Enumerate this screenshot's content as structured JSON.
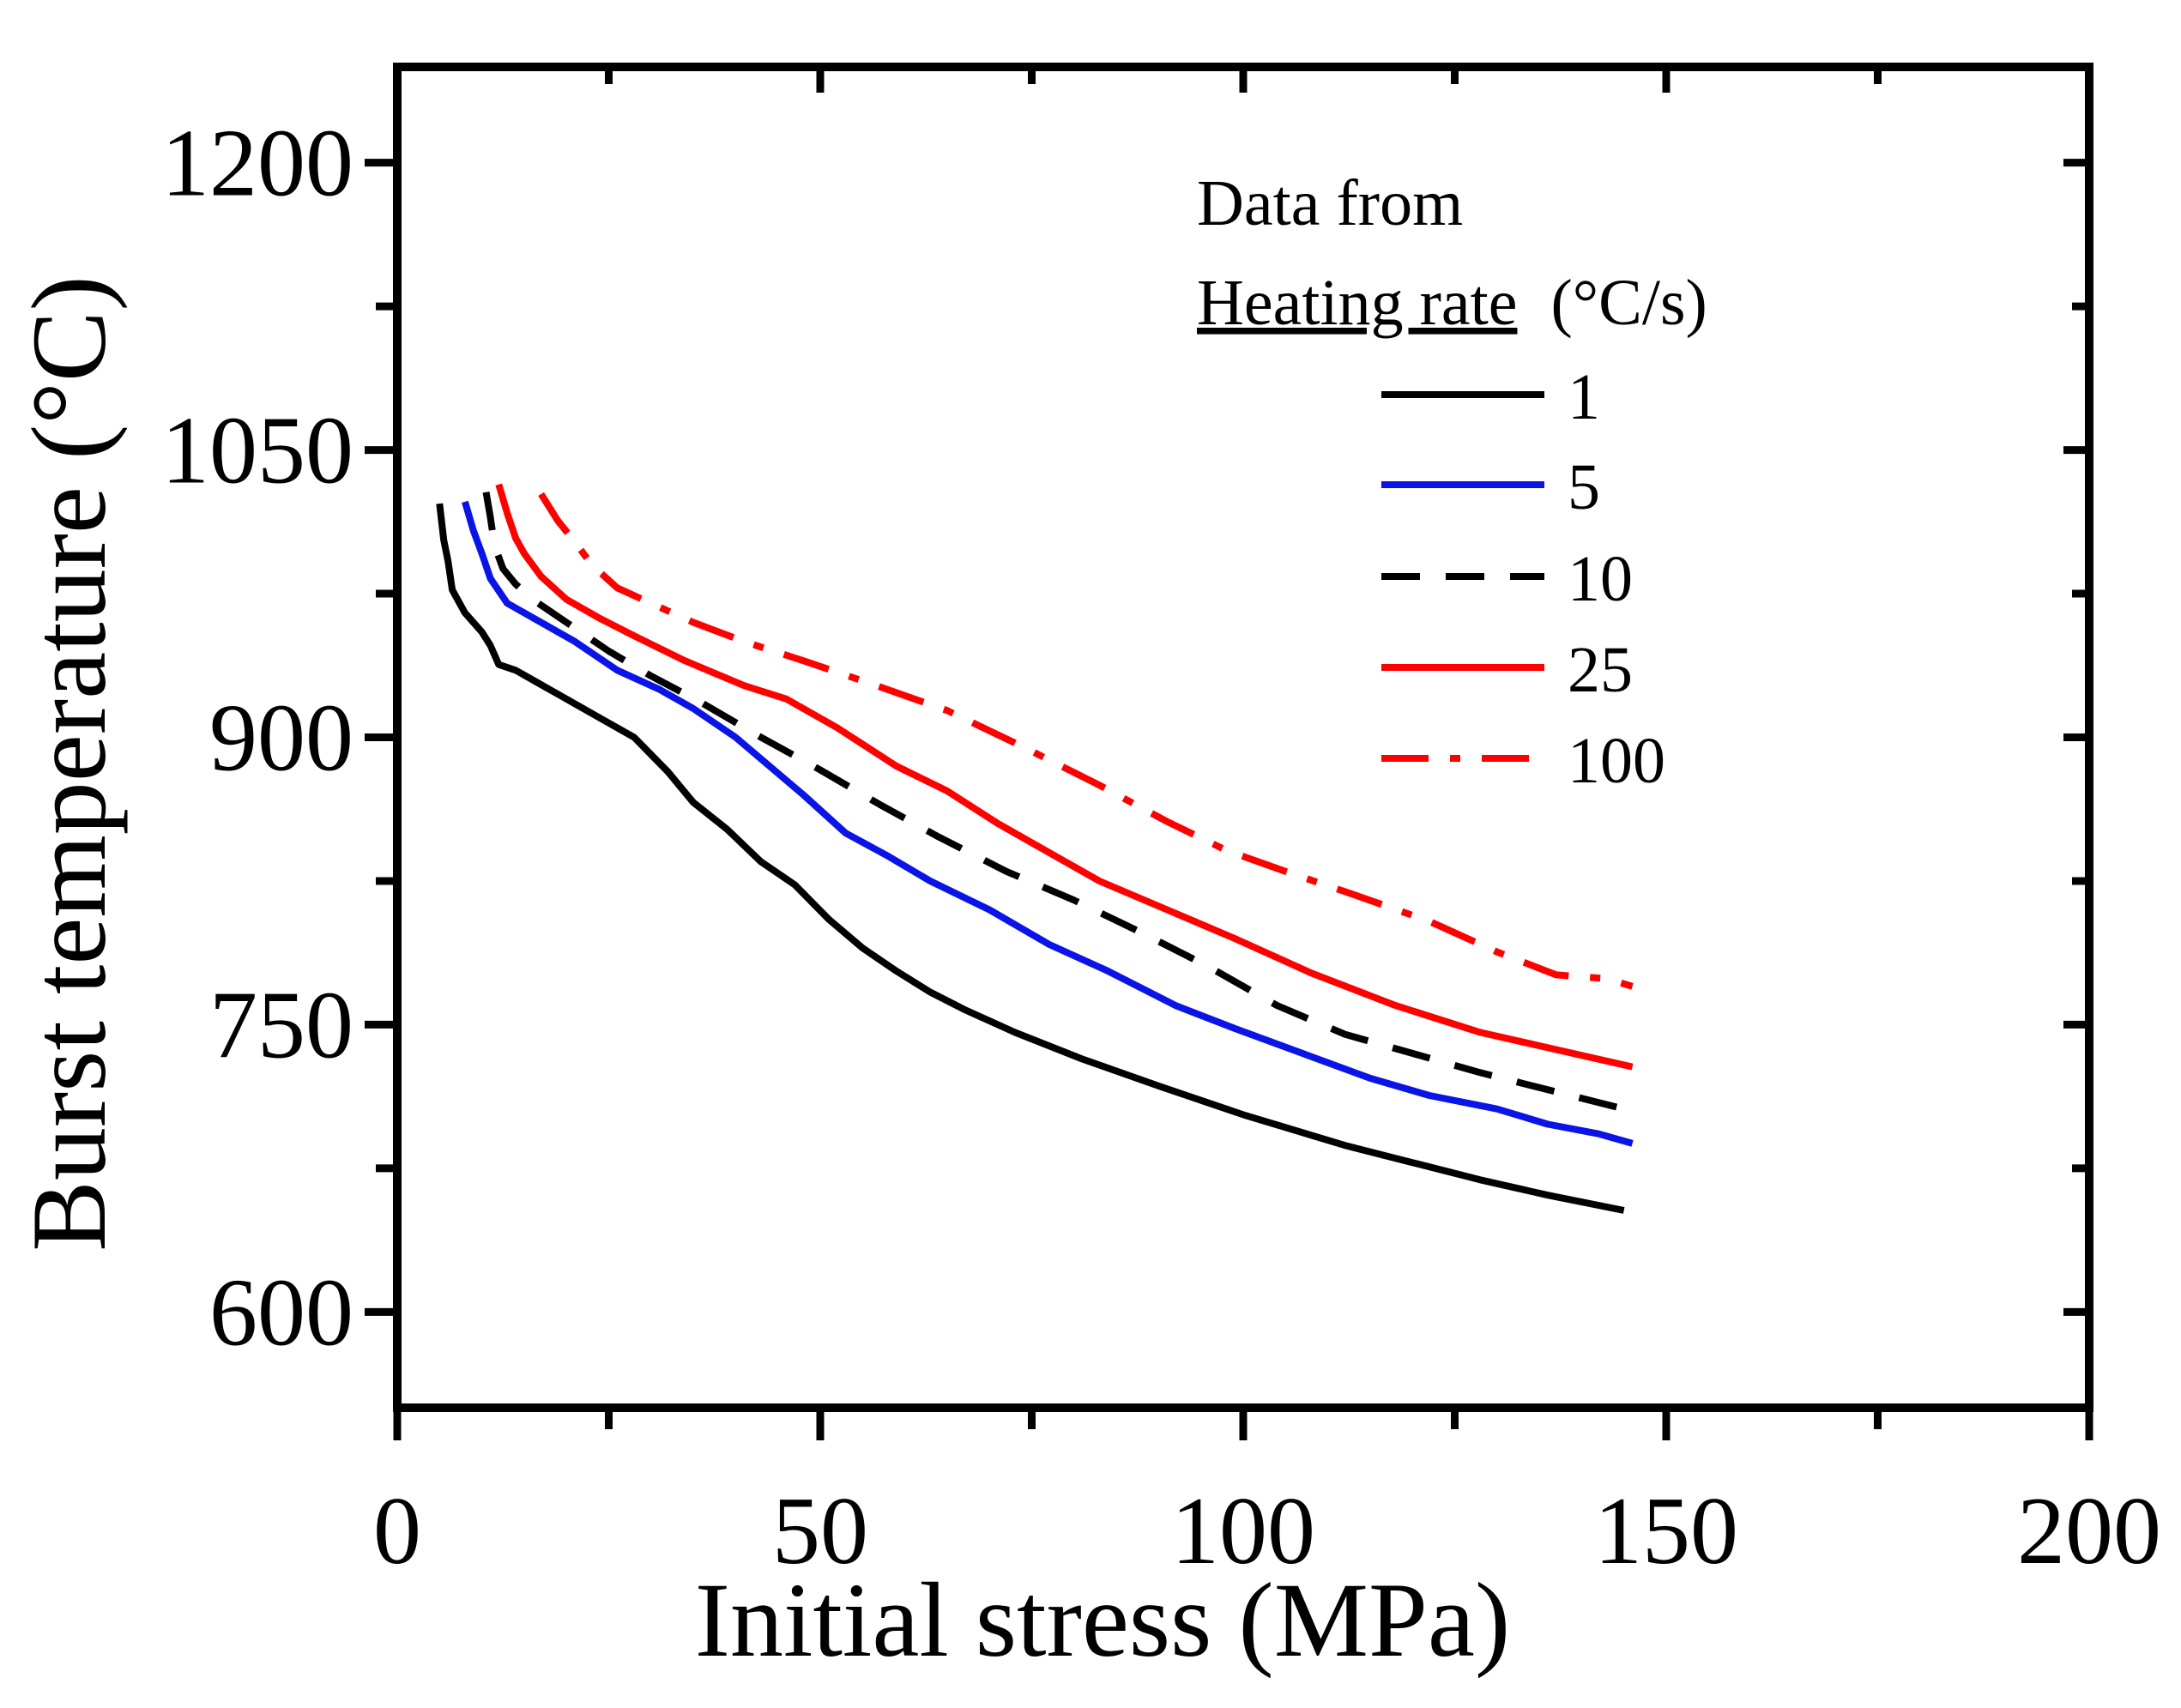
{
  "chart_data": {
    "type": "line",
    "xlabel": "Initial stress (MPa)",
    "ylabel": "Burst temperature (°C)",
    "xlim": [
      0,
      200
    ],
    "ylim": [
      550,
      1250
    ],
    "x_major_ticks": [
      0,
      50,
      100,
      150,
      200
    ],
    "x_minor_ticks": [
      25,
      75,
      125,
      175
    ],
    "y_major_ticks": [
      600,
      750,
      900,
      1050,
      1200
    ],
    "y_minor_ticks": [
      675,
      825,
      975,
      1125
    ],
    "grid": false,
    "legend": {
      "placement": "top-right",
      "line1": "Data from",
      "title_underlined": "Heating rate",
      "title_unit": "(°C/s)"
    },
    "colors": {
      "black": "#000000",
      "blue": "#0a14e6",
      "red": "#ff0000"
    },
    "series": [
      {
        "name": "1",
        "color": "#000000",
        "style": "solid",
        "x": [
          5,
          5.5,
          6,
          6.5,
          8,
          10,
          11,
          12,
          14,
          16,
          20,
          24,
          28,
          32,
          35,
          39,
          43,
          47,
          51,
          55,
          59,
          63,
          67,
          73,
          81,
          90,
          100,
          112,
          120,
          128,
          136,
          145
        ],
        "y": [
          1022,
          1003,
          992,
          977,
          965,
          955,
          948,
          938,
          935,
          930,
          920,
          910,
          900,
          882,
          866,
          852,
          835,
          823,
          805,
          790,
          778,
          767,
          758,
          746,
          732,
          718,
          703,
          687,
          678,
          669,
          661,
          653
        ]
      },
      {
        "name": "5",
        "color": "#0a14e6",
        "style": "solid",
        "x": [
          8,
          9,
          10,
          11,
          13,
          17,
          21,
          26,
          31,
          35,
          40,
          44,
          48,
          53,
          58,
          63,
          70,
          77,
          84,
          92,
          99,
          107,
          115,
          122,
          130,
          136,
          142,
          146
        ],
        "y": [
          1023,
          1008,
          996,
          983,
          970,
          960,
          950,
          935,
          925,
          915,
          900,
          885,
          870,
          850,
          838,
          825,
          810,
          792,
          778,
          760,
          748,
          735,
          722,
          713,
          706,
          698,
          693,
          688
        ]
      },
      {
        "name": "10",
        "color": "#000000",
        "style": "dashed",
        "x": [
          10.5,
          11,
          11.5,
          12.5,
          14,
          16,
          20,
          25,
          30,
          36,
          43,
          50,
          57,
          64,
          72,
          80,
          88,
          96,
          104,
          112,
          120,
          128,
          136,
          145
        ],
        "y": [
          1028,
          1015,
          1000,
          988,
          980,
          972,
          960,
          945,
          932,
          918,
          900,
          883,
          865,
          848,
          830,
          815,
          798,
          780,
          760,
          745,
          735,
          725,
          716,
          706
        ]
      },
      {
        "name": "25",
        "color": "#ff0000",
        "style": "solid",
        "x": [
          12,
          13,
          14,
          15,
          17,
          20,
          24,
          28,
          34,
          41,
          46,
          52,
          59,
          65,
          71,
          77,
          83,
          91,
          99,
          108,
          118,
          128,
          137,
          146
        ],
        "y": [
          1032,
          1017,
          1004,
          996,
          984,
          972,
          962,
          953,
          940,
          927,
          920,
          905,
          885,
          872,
          855,
          840,
          825,
          810,
          795,
          777,
          760,
          746,
          737,
          728
        ]
      },
      {
        "name": "100",
        "color": "#ff0000",
        "style": "dashdot",
        "x": [
          17,
          19,
          21,
          23,
          26,
          30,
          35,
          41,
          48,
          56,
          65,
          74,
          83,
          91,
          98,
          105,
          113,
          122,
          130,
          137,
          143,
          146
        ],
        "y": [
          1027,
          1013,
          1002,
          990,
          978,
          970,
          960,
          950,
          940,
          928,
          914,
          895,
          875,
          856,
          841,
          830,
          818,
          804,
          788,
          776,
          774,
          770
        ]
      }
    ]
  }
}
